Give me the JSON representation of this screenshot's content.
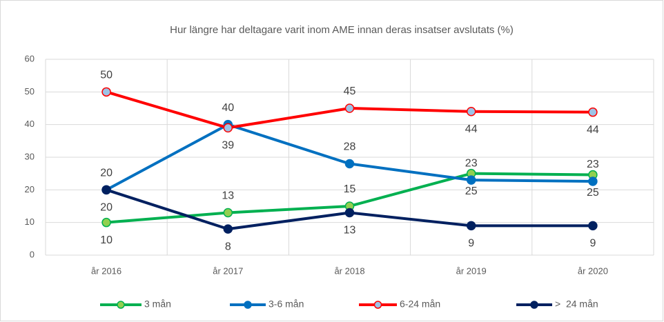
{
  "chart_data": {
    "type": "line",
    "title": "Hur längre har deltagare varit inom AME  innan deras insatser avslutats (%)",
    "categories": [
      "år 2016",
      "år 2017",
      "år 2018",
      "år 2019",
      "år 2020"
    ],
    "series": [
      {
        "name": "3 mån",
        "color": "#00b050",
        "marker_fill": "#92d050",
        "values": [
          10,
          13,
          15,
          25,
          24.6
        ],
        "value_labels": [
          "10",
          "13",
          "15",
          "25",
          "25"
        ]
      },
      {
        "name": "3-6 mån",
        "color": "#0070c0",
        "marker_fill": "#0070c0",
        "values": [
          20,
          40,
          28,
          23,
          22.6
        ],
        "value_labels": [
          "20",
          "40",
          "28",
          "23",
          "23"
        ]
      },
      {
        "name": "6-24 mån",
        "color": "#ff0000",
        "marker_fill": "#9dc3e6",
        "values": [
          50,
          39,
          45,
          44,
          43.8
        ],
        "value_labels": [
          "50",
          "39",
          "45",
          "44",
          "44"
        ]
      },
      {
        "name": ">  24 mån",
        "color": "#002060",
        "marker_fill": "#002060",
        "values": [
          20,
          8,
          13,
          9,
          9
        ],
        "value_labels": [
          "20",
          "8",
          "13",
          "9",
          "9"
        ]
      }
    ],
    "ylim": [
      0,
      60
    ],
    "yticks": [
      0,
      10,
      20,
      30,
      40,
      50,
      60
    ],
    "grid": true,
    "legend": "bottom"
  }
}
